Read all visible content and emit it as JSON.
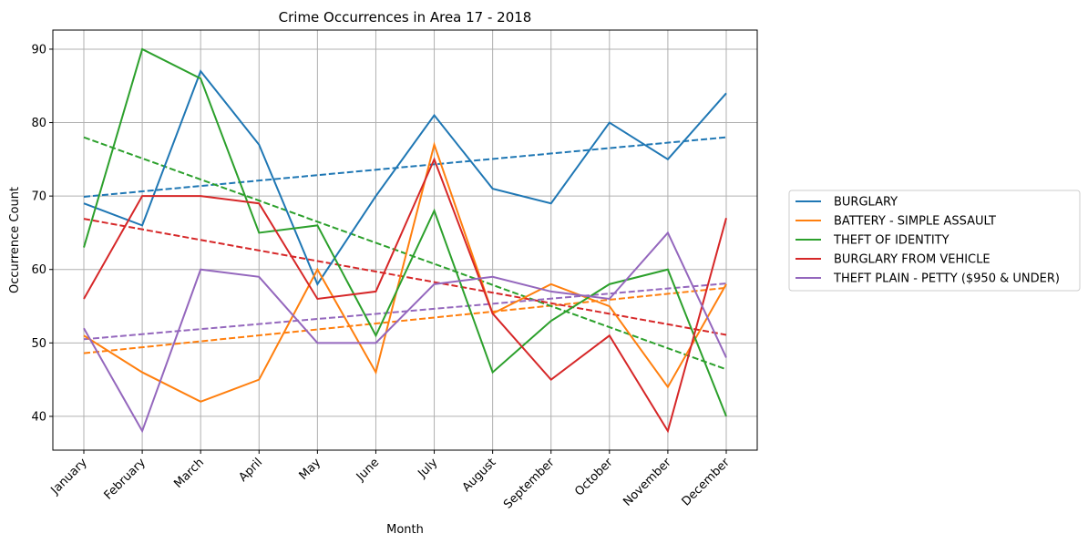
{
  "chart_data": {
    "type": "line",
    "title": "Crime Occurrences in Area 17 - 2018",
    "xlabel": "Month",
    "ylabel": "Occurrence Count",
    "categories": [
      "January",
      "February",
      "March",
      "April",
      "May",
      "June",
      "July",
      "August",
      "September",
      "October",
      "November",
      "December"
    ],
    "ylim": [
      35.4,
      92.6
    ],
    "yticks": [
      40,
      50,
      60,
      70,
      80,
      90
    ],
    "grid": true,
    "legend_position": "right-outside",
    "series": [
      {
        "name": "BURGLARY",
        "color": "#1f77b4",
        "values": [
          69,
          66,
          87,
          77,
          58,
          70,
          81,
          71,
          69,
          80,
          75,
          84
        ],
        "trend": [
          69.9,
          78.0
        ]
      },
      {
        "name": "BATTERY - SIMPLE ASSAULT",
        "color": "#ff7f0e",
        "values": [
          51,
          46,
          42,
          45,
          60,
          46,
          77,
          54,
          58,
          55,
          44,
          58
        ],
        "trend": [
          48.6,
          57.5
        ]
      },
      {
        "name": "THEFT OF IDENTITY",
        "color": "#2ca02c",
        "values": [
          63,
          90,
          86,
          65,
          66,
          51,
          68,
          46,
          53,
          58,
          60,
          40
        ],
        "trend": [
          78.0,
          46.4
        ]
      },
      {
        "name": "BURGLARY FROM VEHICLE",
        "color": "#d62728",
        "values": [
          56,
          70,
          70,
          69,
          56,
          57,
          75,
          54,
          45,
          51,
          38,
          67
        ],
        "trend": [
          66.9,
          51.1
        ]
      },
      {
        "name": "THEFT PLAIN - PETTY ($950 & UNDER)",
        "color": "#9467bd",
        "values": [
          52,
          38,
          60,
          59,
          50,
          50,
          58,
          59,
          57,
          56,
          65,
          48
        ],
        "trend": [
          50.5,
          58.1
        ]
      }
    ]
  }
}
